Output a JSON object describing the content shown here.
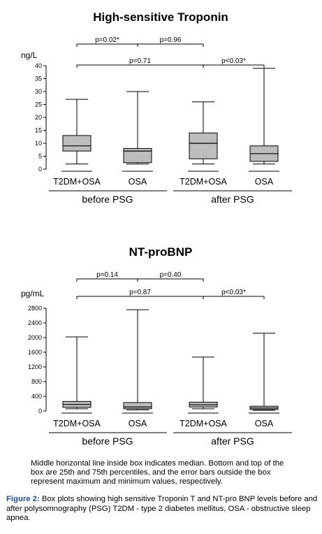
{
  "colors": {
    "box_fill": "#bdbdbd",
    "line": "#000000",
    "figure_label": "#1b4f9c"
  },
  "chart_data": [
    {
      "type": "boxplot",
      "title": "High-sensitive Troponin",
      "ylabel": "ng/L",
      "ylim": [
        0,
        40
      ],
      "yticks": [
        0,
        5,
        10,
        15,
        20,
        25,
        30,
        35,
        40
      ],
      "categories": [
        "T2DM+OSA",
        "OSA",
        "T2DM+OSA",
        "OSA"
      ],
      "groups": [
        "before PSG",
        "after PSG"
      ],
      "boxes": [
        {
          "label": "T2DM+OSA",
          "group": "before PSG",
          "min": 2,
          "q1": 7,
          "median": 9,
          "q3": 13,
          "max": 27
        },
        {
          "label": "OSA",
          "group": "before PSG",
          "min": 2,
          "q1": 2.5,
          "median": 7,
          "q3": 8,
          "max": 30
        },
        {
          "label": "T2DM+OSA",
          "group": "after PSG",
          "min": 2,
          "q1": 4,
          "median": 10,
          "q3": 14,
          "max": 26
        },
        {
          "label": "OSA",
          "group": "after PSG",
          "min": 2,
          "q1": 3,
          "median": 6,
          "q3": 9,
          "max": 39
        }
      ],
      "comparisons": [
        {
          "label": "p=0.02*",
          "from": 0,
          "to": 1,
          "tier": 1
        },
        {
          "label": "p=0.96",
          "from": 1,
          "to": 2,
          "tier": 1
        },
        {
          "label": "p=0.71",
          "from": 0,
          "to": 2,
          "tier": 0
        },
        {
          "label": "p<0.03*",
          "from": 2,
          "to": 3,
          "tier": 0
        }
      ]
    },
    {
      "type": "boxplot",
      "title": "NT-proBNP",
      "ylabel": "pg/mL",
      "ylim": [
        0,
        2800
      ],
      "yticks": [
        0,
        400,
        800,
        1200,
        1600,
        2000,
        2400,
        2800
      ],
      "categories": [
        "T2DM+OSA",
        "OSA",
        "T2DM+OSA",
        "OSA"
      ],
      "groups": [
        "before PSG",
        "after PSG"
      ],
      "boxes": [
        {
          "label": "T2DM+OSA",
          "group": "before PSG",
          "min": 60,
          "q1": 100,
          "median": 180,
          "q3": 260,
          "max": 2020
        },
        {
          "label": "OSA",
          "group": "before PSG",
          "min": 30,
          "q1": 60,
          "median": 110,
          "q3": 230,
          "max": 2760
        },
        {
          "label": "T2DM+OSA",
          "group": "after PSG",
          "min": 60,
          "q1": 110,
          "median": 170,
          "q3": 240,
          "max": 1470
        },
        {
          "label": "OSA",
          "group": "after PSG",
          "min": 20,
          "q1": 40,
          "median": 80,
          "q3": 130,
          "max": 2120
        }
      ],
      "comparisons": [
        {
          "label": "p=0.14",
          "from": 0,
          "to": 1,
          "tier": 1
        },
        {
          "label": "p=0.40",
          "from": 1,
          "to": 2,
          "tier": 1
        },
        {
          "label": "p=0.87",
          "from": 0,
          "to": 2,
          "tier": 0
        },
        {
          "label": "p<0.03*",
          "from": 2,
          "to": 3,
          "tier": 0
        }
      ]
    }
  ],
  "caption": {
    "note": "Middle horizontal line inside box indicates median. Bottom and top of the box are 25th and 75th percentiles, and the error bars outside the box represent maximum and minimum values, respectively.",
    "figure_label": "Figure 2:",
    "figure_text": " Box plots showing high sensitive Troponin T and NT-pro BNP levels before and after polysomnography (PSG) T2DM - type 2 diabetes mellitus, OSA - obstructive sleep apnea."
  }
}
